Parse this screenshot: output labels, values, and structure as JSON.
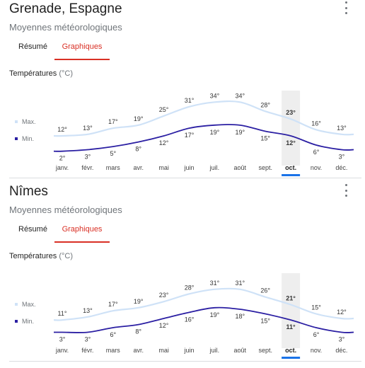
{
  "colors": {
    "max_line": "#cfe2f7",
    "min_line": "#2b1fa3",
    "accent": "#d93025",
    "text": "#222222",
    "muted": "#70757a",
    "highlight": "#eeeeee",
    "underline": "#1a73e8"
  },
  "cards": [
    {
      "title": "Grenade, Espagne",
      "subtitle": "Moyennes météorologiques",
      "tabs": [
        {
          "label": "Résumé",
          "active": false
        },
        {
          "label": "Graphiques",
          "active": true
        }
      ],
      "temp_label": "Températures",
      "unit_label": "(°C)",
      "legend": {
        "max": "Max.",
        "min": "Min."
      },
      "chart_data": {
        "type": "line",
        "title": "Températures (°C)",
        "categories": [
          "janv.",
          "févr.",
          "mars",
          "avr.",
          "mai",
          "juin",
          "juil.",
          "août",
          "sept.",
          "oct.",
          "nov.",
          "déc."
        ],
        "series": [
          {
            "name": "Max.",
            "values": [
              12,
              13,
              17,
              19,
              25,
              31,
              34,
              34,
              28,
              23,
              16,
              13
            ],
            "labels": [
              "12°",
              "13°",
              "17°",
              "19°",
              "25°",
              "31°",
              "34°",
              "34°",
              "28°",
              "23°",
              "16°",
              "13°"
            ]
          },
          {
            "name": "Min.",
            "values": [
              2,
              3,
              5,
              8,
              12,
              17,
              19,
              19,
              15,
              12,
              6,
              3
            ],
            "labels": [
              "2°",
              "3°",
              "5°",
              "8°",
              "12°",
              "17°",
              "19°",
              "19°",
              "15°",
              "12°",
              "6°",
              "3°"
            ]
          }
        ],
        "highlight_index": 9,
        "ylim": [
          0,
          36
        ]
      }
    },
    {
      "title": "Nîmes",
      "subtitle": "Moyennes météorologiques",
      "tabs": [
        {
          "label": "Résumé",
          "active": false
        },
        {
          "label": "Graphiques",
          "active": true
        }
      ],
      "temp_label": "Températures",
      "unit_label": "(°C)",
      "legend": {
        "max": "Max.",
        "min": "Min."
      },
      "chart_data": {
        "type": "line",
        "title": "Températures (°C)",
        "categories": [
          "janv.",
          "févr.",
          "mars",
          "avr.",
          "mai",
          "juin",
          "juil.",
          "août",
          "sept.",
          "oct.",
          "nov.",
          "déc."
        ],
        "series": [
          {
            "name": "Max.",
            "values": [
              11,
              13,
              17,
              19,
              23,
              28,
              31,
              31,
              26,
              21,
              15,
              12
            ],
            "labels": [
              "11°",
              "13°",
              "17°",
              "19°",
              "23°",
              "28°",
              "31°",
              "31°",
              "26°",
              "21°",
              "15°",
              "12°"
            ]
          },
          {
            "name": "Min.",
            "values": [
              3,
              3,
              6,
              8,
              12,
              16,
              19,
              18,
              15,
              11,
              6,
              3
            ],
            "labels": [
              "3°",
              "3°",
              "6°",
              "8°",
              "12°",
              "16°",
              "19°",
              "18°",
              "15°",
              "11°",
              "6°",
              "3°"
            ]
          }
        ],
        "highlight_index": 9,
        "ylim": [
          0,
          36
        ]
      }
    }
  ]
}
